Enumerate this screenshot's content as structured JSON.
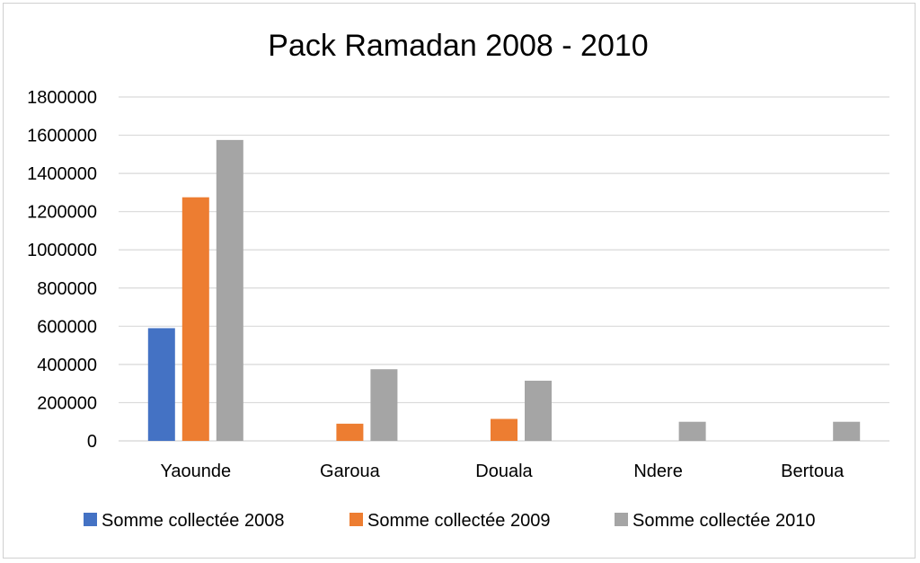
{
  "chart_data": {
    "type": "bar",
    "title": "Pack Ramadan 2008 - 2010",
    "categories": [
      "Yaounde",
      "Garoua",
      "Douala",
      "Ndere",
      "Bertoua"
    ],
    "series": [
      {
        "name": "Somme collectée 2008",
        "color": "#4472C4",
        "values": [
          590000,
          0,
          0,
          0,
          0
        ]
      },
      {
        "name": "Somme collectée 2009",
        "color": "#ED7D31",
        "values": [
          1275000,
          90000,
          115000,
          0,
          0
        ]
      },
      {
        "name": "Somme collectée 2010",
        "color": "#A5A5A5",
        "values": [
          1575000,
          375000,
          315000,
          100000,
          100000
        ]
      }
    ],
    "yticks": [
      "0",
      "200000",
      "400000",
      "600000",
      "800000",
      "1000000",
      "1200000",
      "1400000",
      "1600000",
      "1800000"
    ],
    "ylim": [
      0,
      1800000
    ],
    "grid": true,
    "gridColor": "#d9d9d9",
    "legendPosition": "bottom"
  }
}
